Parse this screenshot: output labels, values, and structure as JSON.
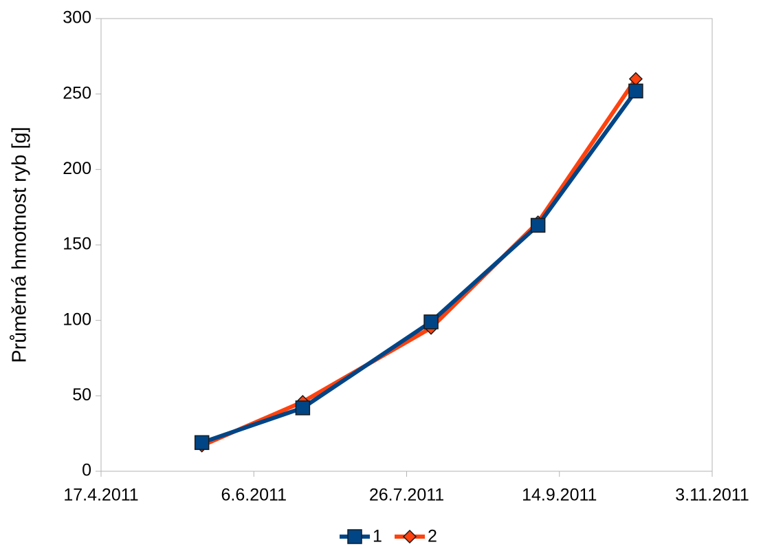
{
  "chart_data": {
    "type": "line",
    "y_label": "Průměrná hmotnost ryb [g]",
    "x": [
      "2011-05-20",
      "2011-06-22",
      "2011-08-03",
      "2011-09-07",
      "2011-10-09"
    ],
    "series": [
      {
        "name": "1",
        "color": "#004586",
        "marker": "square",
        "values": [
          19,
          42,
          99,
          163,
          252
        ]
      },
      {
        "name": "2",
        "color": "#ff420e",
        "marker": "diamond",
        "values": [
          17,
          46,
          95,
          165,
          260
        ]
      }
    ],
    "xlim": [
      "2011-04-17",
      "2011-11-03"
    ],
    "xticks": [
      {
        "value": "2011-04-17",
        "label": "17.4.2011"
      },
      {
        "value": "2011-06-06",
        "label": "6.6.2011"
      },
      {
        "value": "2011-07-26",
        "label": "26.7.2011"
      },
      {
        "value": "2011-09-14",
        "label": "14.9.2011"
      },
      {
        "value": "2011-11-03",
        "label": "3.11.2011"
      }
    ],
    "ylim": [
      0,
      300
    ],
    "yticks": [
      0,
      50,
      100,
      150,
      200,
      250,
      300
    ],
    "grid": false,
    "legend": "bottom"
  }
}
